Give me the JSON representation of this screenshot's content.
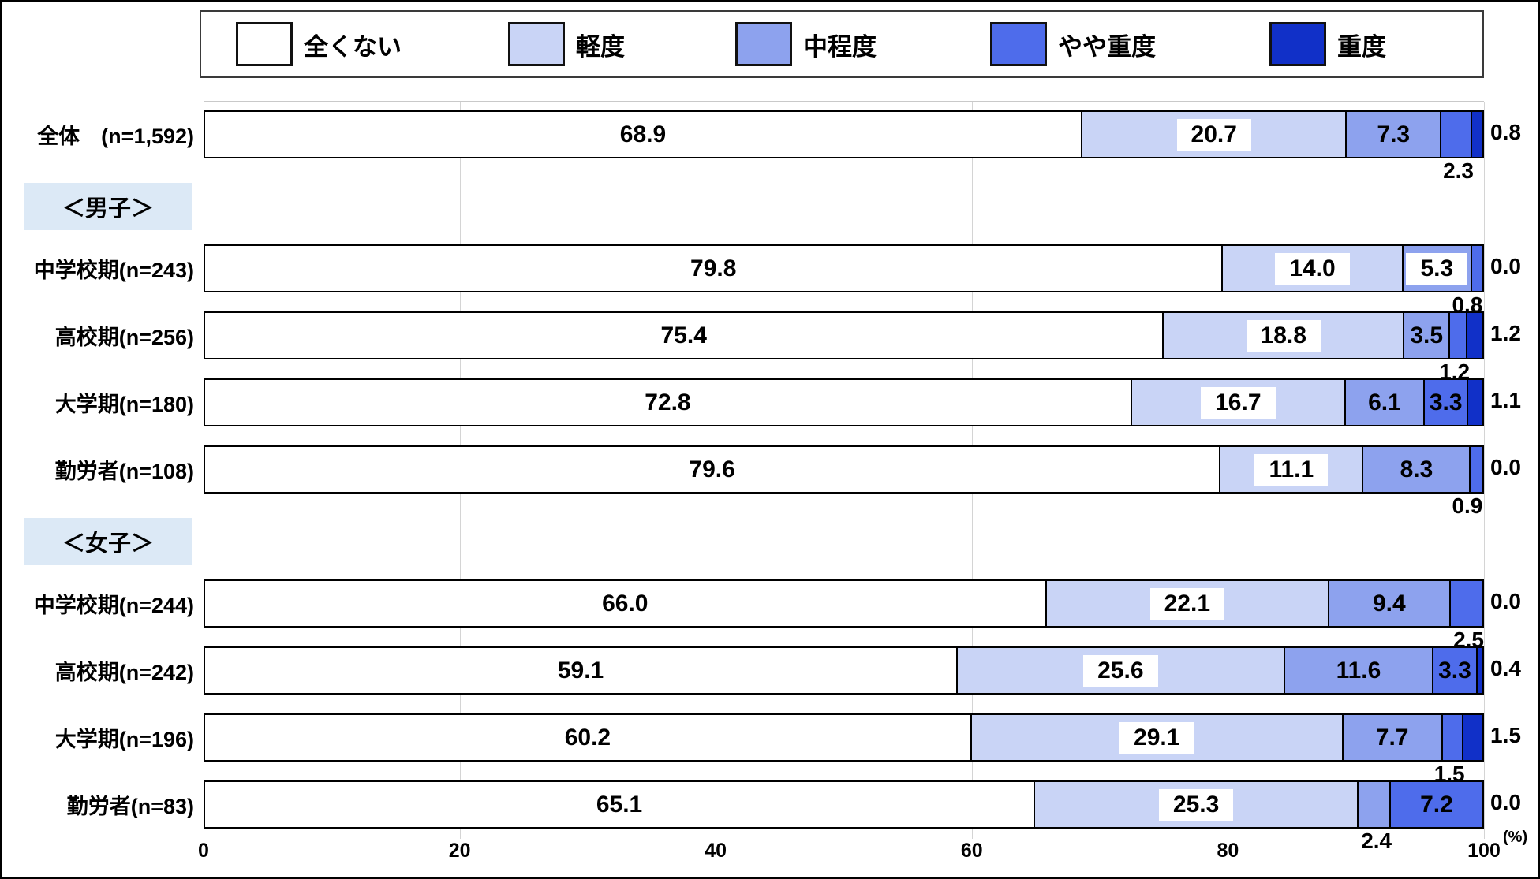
{
  "legend": {
    "items": [
      {
        "label": "全くない",
        "color": "#ffffff"
      },
      {
        "label": "軽度",
        "color": "#c9d4f6"
      },
      {
        "label": "中程度",
        "color": "#8da2ee"
      },
      {
        "label": "やや重度",
        "color": "#4e6ceb"
      },
      {
        "label": "重度",
        "color": "#1130c8"
      }
    ]
  },
  "axis": {
    "ticks": [
      "0",
      "20",
      "40",
      "60",
      "80",
      "100"
    ],
    "unit": "(%)"
  },
  "chart_data": {
    "type": "bar",
    "stacked": true,
    "orientation": "horizontal",
    "xlim": [
      0,
      100
    ],
    "unit": "%",
    "grid": true,
    "legend_position": "top",
    "series_names": [
      "全くない",
      "軽度",
      "中程度",
      "やや重度",
      "重度"
    ],
    "rows": [
      {
        "kind": "bar",
        "label": "全体　(n=1,592)",
        "values": [
          68.9,
          20.7,
          7.3,
          2.3,
          0.8
        ],
        "label_pos": [
          "in",
          "box",
          "in",
          "below",
          "right"
        ]
      },
      {
        "kind": "header",
        "label": "＜男子＞"
      },
      {
        "kind": "bar",
        "label": "中学校期(n=243)",
        "values": [
          79.8,
          14.0,
          5.3,
          0.8,
          0.0
        ],
        "label_pos": [
          "in",
          "box",
          "box",
          "below",
          "right"
        ]
      },
      {
        "kind": "bar",
        "label": "高校期(n=256)",
        "values": [
          75.4,
          18.8,
          3.5,
          1.2,
          1.2
        ],
        "label_pos": [
          "in",
          "box",
          "in",
          "below",
          "right"
        ]
      },
      {
        "kind": "bar",
        "label": "大学期(n=180)",
        "values": [
          72.8,
          16.7,
          6.1,
          3.3,
          1.1
        ],
        "label_pos": [
          "in",
          "box",
          "in",
          "in",
          "right"
        ]
      },
      {
        "kind": "bar",
        "label": "勤労者(n=108)",
        "values": [
          79.6,
          11.1,
          8.3,
          0.9,
          0.0
        ],
        "label_pos": [
          "in",
          "box",
          "in",
          "below",
          "right"
        ]
      },
      {
        "kind": "header",
        "label": "＜女子＞"
      },
      {
        "kind": "bar",
        "label": "中学校期(n=244)",
        "values": [
          66.0,
          22.1,
          9.4,
          2.5,
          0.0
        ],
        "label_pos": [
          "in",
          "box",
          "in",
          "below",
          "right"
        ]
      },
      {
        "kind": "bar",
        "label": "高校期(n=242)",
        "values": [
          59.1,
          25.6,
          11.6,
          3.3,
          0.4
        ],
        "label_pos": [
          "in",
          "box",
          "in",
          "in",
          "right"
        ]
      },
      {
        "kind": "bar",
        "label": "大学期(n=196)",
        "values": [
          60.2,
          29.1,
          7.7,
          1.5,
          1.5
        ],
        "label_pos": [
          "in",
          "box",
          "in",
          "below",
          "right"
        ]
      },
      {
        "kind": "bar",
        "label": "勤労者(n=83)",
        "values": [
          65.1,
          25.3,
          2.4,
          7.2,
          0.0
        ],
        "label_pos": [
          "in",
          "box",
          "below",
          "in",
          "right"
        ]
      }
    ]
  }
}
